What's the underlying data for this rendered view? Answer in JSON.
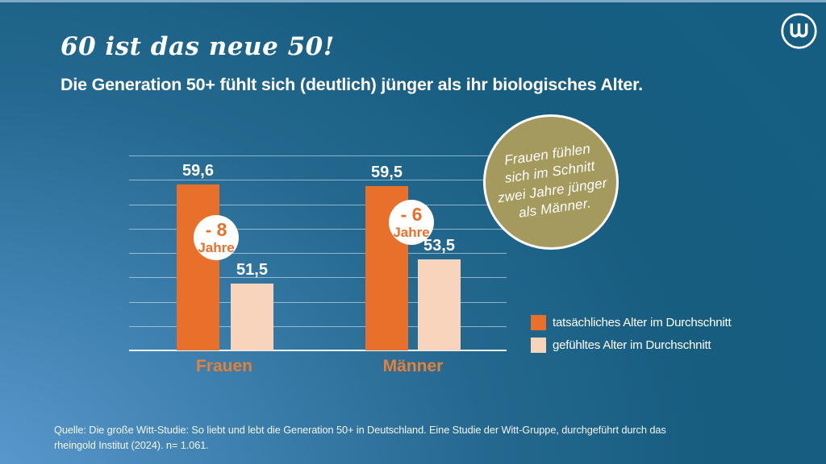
{
  "slide": {
    "title": "60 ist das neue 50!",
    "subtitle": "Die Generation 50+ fühlt sich (deutlich) jünger als ihr biologisches Alter.",
    "source": {
      "line1": "Quelle: Die große Witt-Studie: So liebt und lebt die Generation 50+ in Deutschland. Eine Studie der Witt-Gruppe, durchgeführt durch das",
      "line2": "rheingold Institut (2024). n= 1.061."
    }
  },
  "callout": {
    "lines": [
      "Frauen fühlen",
      "sich im Schnitt",
      "zwei Jahre jünger",
      "als Männer."
    ],
    "fill": "#a49a5e"
  },
  "chart_data": {
    "type": "bar",
    "categories": [
      "Frauen",
      "Männer"
    ],
    "series": [
      {
        "name": "tatsächliches Alter im Durchschnitt",
        "color": "#e8702a",
        "values": [
          59.6,
          59.5
        ],
        "labels": [
          "59,6",
          "59,5"
        ]
      },
      {
        "name": "gefühltes Alter im Durchschnitt",
        "color": "#f8d4bc",
        "values": [
          51.5,
          53.5
        ],
        "labels": [
          "51,5",
          "53,5"
        ]
      }
    ],
    "badges": [
      {
        "line1": "- 8",
        "line2": "Jahre"
      },
      {
        "line1": "- 6",
        "line2": "Jahre"
      }
    ],
    "title": "",
    "xlabel": "",
    "ylabel": "",
    "ylim": [
      46,
      62
    ],
    "gridline_count": 9,
    "grid": true,
    "legend_position": "right"
  },
  "colors": {
    "orange": "#e8702a",
    "peach": "#f8d4bc",
    "olive": "#a49a5e",
    "background_dark": "#175d80",
    "background_light": "#4f90c8"
  }
}
